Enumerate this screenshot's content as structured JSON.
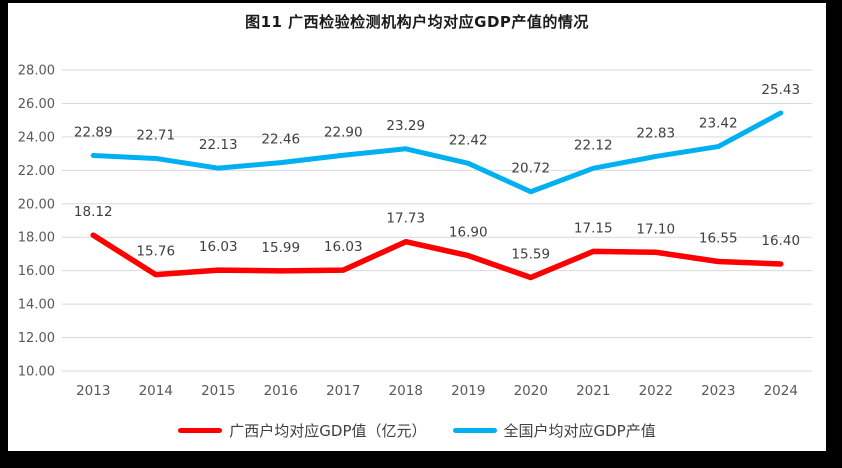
{
  "title": "图11 广西检验检测机构户均对应GDP产值的情况",
  "chart_data": {
    "type": "line",
    "categories": [
      "2013",
      "2014",
      "2015",
      "2016",
      "2017",
      "2018",
      "2019",
      "2020",
      "2021",
      "2022",
      "2023",
      "2024"
    ],
    "series": [
      {
        "name": "广西户均对应GDP值（亿元）",
        "color": "#FF0000",
        "stroke_width": 5.5,
        "values": [
          18.12,
          15.76,
          16.03,
          15.99,
          16.03,
          17.73,
          16.9,
          15.59,
          17.15,
          17.1,
          16.55,
          16.4
        ]
      },
      {
        "name": "全国户均对应GDP产值",
        "color": "#00B0F0",
        "stroke_width": 5,
        "values": [
          22.89,
          22.71,
          22.13,
          22.46,
          22.9,
          23.29,
          22.42,
          20.72,
          22.12,
          22.83,
          23.42,
          25.43
        ]
      }
    ],
    "ylim": [
      10,
      28
    ],
    "ytick_step": 2,
    "ytick_format_decimals": 2,
    "value_label_decimals": 2,
    "grid": true,
    "legend_position": "bottom",
    "xlabel": "",
    "ylabel": ""
  },
  "style": {
    "axis_text_color": "#595959",
    "grid_color": "#D9D9D9",
    "data_label_color": "#404040",
    "frame_border_color": "#000000",
    "background": "#ffffff"
  }
}
